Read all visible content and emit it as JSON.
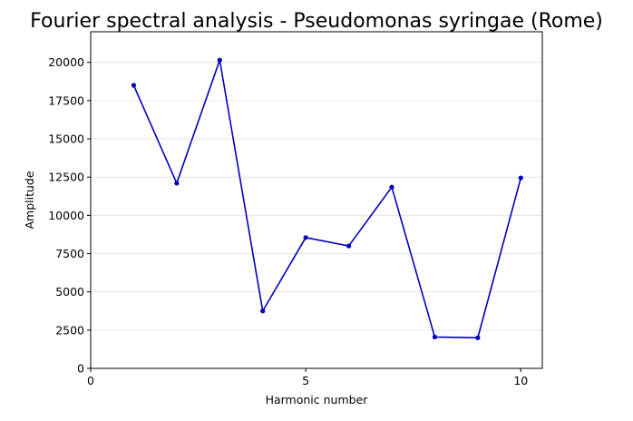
{
  "chart_data": {
    "type": "line",
    "title": "Fourier spectral analysis - Pseudomonas syringae (Rome)",
    "xlabel": "Harmonic number",
    "ylabel": "Amplitude",
    "xlim": [
      0,
      10.5
    ],
    "ylim": [
      0,
      22000
    ],
    "xticks": [
      0,
      5,
      10
    ],
    "yticks": [
      0,
      2500,
      5000,
      7500,
      10000,
      12500,
      15000,
      17500,
      20000
    ],
    "grid": "horizontal",
    "series": [
      {
        "color": "#0000bf",
        "x": [
          1,
          2,
          3,
          4,
          5,
          6,
          7,
          8,
          9,
          10
        ],
        "y": [
          18500,
          12100,
          20150,
          3750,
          8550,
          8000,
          11850,
          2050,
          2000,
          12450
        ]
      }
    ]
  }
}
